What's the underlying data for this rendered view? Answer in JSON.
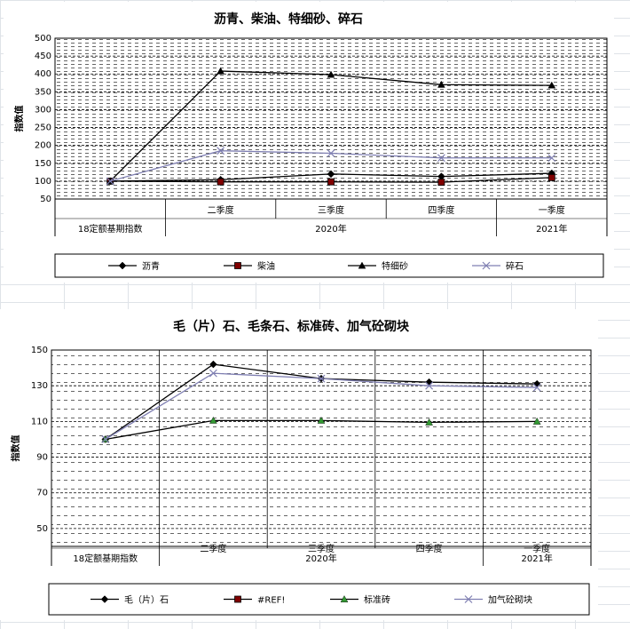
{
  "chart_data": [
    {
      "type": "line",
      "title": "沥青、柴油、特细砂、碎石",
      "y_label": "指数值",
      "categories": [
        "18定额基期指数",
        "二季度",
        "三季度",
        "四季度",
        "一季度"
      ],
      "groups": [
        {
          "label": "2020年",
          "span": [
            1,
            3
          ]
        },
        {
          "label": "2021年",
          "span": [
            4,
            4
          ]
        }
      ],
      "ylim": [
        50,
        500
      ],
      "yticks": [
        50,
        100,
        150,
        200,
        250,
        300,
        350,
        400,
        450,
        500
      ],
      "grid": true,
      "series": [
        {
          "name": "沥青",
          "color": "#000000",
          "marker": "diamond",
          "marker_color": "#000000",
          "values": [
            100,
            104,
            120,
            113,
            122
          ]
        },
        {
          "name": "柴油",
          "color": "#000000",
          "marker": "square",
          "marker_color": "#800000",
          "values": [
            100,
            98,
            98,
            97,
            110
          ]
        },
        {
          "name": "特细砂",
          "color": "#000000",
          "marker": "triangle",
          "marker_color": "#000000",
          "values": [
            100,
            408,
            398,
            370,
            368
          ]
        },
        {
          "name": "碎石",
          "color": "#7f7fb2",
          "marker": "x",
          "marker_color": "#7f7fb2",
          "values": [
            100,
            185,
            178,
            165,
            165
          ]
        }
      ]
    },
    {
      "type": "line",
      "title": "毛（片）石、毛条石、标准砖、加气砼砌块",
      "y_label": "指数值",
      "categories": [
        "18定额基期指数",
        "二季度",
        "三季度",
        "四季度",
        "一季度"
      ],
      "groups": [
        {
          "label": "2020年",
          "span": [
            1,
            3
          ]
        },
        {
          "label": "2021年",
          "span": [
            4,
            4
          ]
        }
      ],
      "ylim": [
        40,
        150
      ],
      "yticks": [
        50,
        70,
        90,
        110,
        130,
        150
      ],
      "grid": true,
      "series": [
        {
          "name": "毛（片）石",
          "color": "#000000",
          "marker": "diamond",
          "marker_color": "#000000",
          "values": [
            100,
            142,
            134,
            132,
            131
          ]
        },
        {
          "name": "#REF!",
          "color": "#000000",
          "marker": "square",
          "marker_color": "#800000",
          "values": [
            null,
            null,
            null,
            null,
            null
          ]
        },
        {
          "name": "标准砖",
          "color": "#000000",
          "marker": "triangle",
          "marker_color": "#339933",
          "values": [
            100,
            110.5,
            110.5,
            109.5,
            110
          ]
        },
        {
          "name": "加气砼砌块",
          "color": "#7f7fb2",
          "marker": "x",
          "marker_color": "#7f7fb2",
          "values": [
            100,
            137,
            134,
            130,
            129
          ]
        }
      ]
    }
  ]
}
